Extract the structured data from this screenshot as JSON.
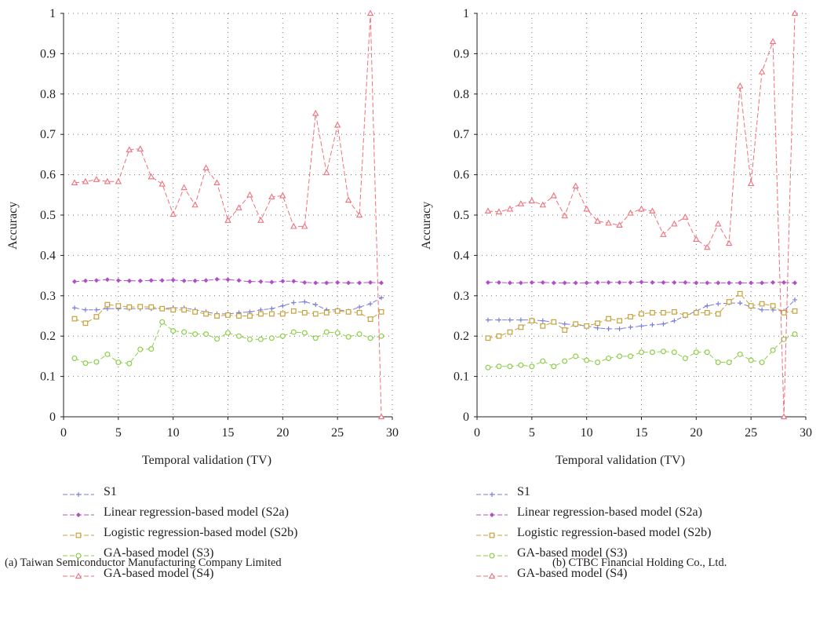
{
  "legend": [
    {
      "label": "S1",
      "color": "#7b7fd6",
      "marker": "plus"
    },
    {
      "label": "Linear regression-based model (S2a)",
      "color": "#b04fc8",
      "marker": "diamond"
    },
    {
      "label": "Logistic regression-based model (S2b)",
      "color": "#c6a13c",
      "marker": "square"
    },
    {
      "label": "GA-based model (S3)",
      "color": "#8ccf4a",
      "marker": "circle"
    },
    {
      "label": "GA-based model (S4)",
      "color": "#f0707c",
      "marker": "triangle"
    }
  ],
  "chart_data": [
    {
      "type": "line",
      "caption": "(a)  Taiwan Semiconductor Manufacturing Company Limited",
      "xlabel": "Temporal validation (TV)",
      "ylabel": "Accuracy",
      "xlim": [
        0,
        30
      ],
      "ylim": [
        0,
        1
      ],
      "xticks": [
        "0",
        "5",
        "10",
        "15",
        "20",
        "25",
        "30"
      ],
      "yticks": [
        "0",
        "0.1",
        "0.2",
        "0.3",
        "0.4",
        "0.5",
        "0.6",
        "0.7",
        "0.8",
        "0.9",
        "1"
      ],
      "grid": true,
      "x": [
        1,
        2,
        3,
        4,
        5,
        6,
        7,
        8,
        9,
        10,
        11,
        12,
        13,
        14,
        15,
        16,
        17,
        18,
        19,
        20,
        21,
        22,
        23,
        24,
        25,
        26,
        27,
        28,
        29
      ],
      "series": [
        {
          "name": "S1",
          "values": [
            0.27,
            0.265,
            0.265,
            0.268,
            0.268,
            0.268,
            0.268,
            0.268,
            0.268,
            0.27,
            0.27,
            0.265,
            0.26,
            0.255,
            0.255,
            0.258,
            0.26,
            0.265,
            0.268,
            0.275,
            0.283,
            0.285,
            0.278,
            0.265,
            0.265,
            0.262,
            0.272,
            0.28,
            0.295
          ]
        },
        {
          "name": "Linear regression-based model (S2a)",
          "values": [
            0.335,
            0.337,
            0.338,
            0.34,
            0.338,
            0.337,
            0.337,
            0.338,
            0.338,
            0.339,
            0.337,
            0.337,
            0.338,
            0.341,
            0.34,
            0.338,
            0.335,
            0.335,
            0.334,
            0.336,
            0.336,
            0.333,
            0.332,
            0.332,
            0.333,
            0.332,
            0.332,
            0.333,
            0.332
          ]
        },
        {
          "name": "Logistic regression-based model (S2b)",
          "values": [
            0.243,
            0.232,
            0.248,
            0.278,
            0.275,
            0.272,
            0.273,
            0.272,
            0.268,
            0.265,
            0.265,
            0.26,
            0.255,
            0.25,
            0.252,
            0.25,
            0.25,
            0.255,
            0.255,
            0.255,
            0.262,
            0.258,
            0.255,
            0.258,
            0.262,
            0.26,
            0.258,
            0.242,
            0.26
          ]
        },
        {
          "name": "GA-based model (S3)",
          "values": [
            0.145,
            0.133,
            0.136,
            0.155,
            0.135,
            0.132,
            0.167,
            0.168,
            0.235,
            0.213,
            0.21,
            0.205,
            0.205,
            0.193,
            0.208,
            0.2,
            0.192,
            0.192,
            0.195,
            0.2,
            0.21,
            0.208,
            0.195,
            0.21,
            0.208,
            0.198,
            0.205,
            0.195,
            0.2
          ]
        },
        {
          "name": "GA-based model (S4)",
          "values": [
            0.58,
            0.583,
            0.588,
            0.583,
            0.583,
            0.662,
            0.664,
            0.595,
            0.577,
            0.502,
            0.568,
            0.525,
            0.617,
            0.58,
            0.487,
            0.518,
            0.55,
            0.487,
            0.545,
            0.548,
            0.472,
            0.472,
            0.752,
            0.605,
            0.723,
            0.537,
            0.5,
            1.0,
            0.0
          ]
        }
      ]
    },
    {
      "type": "line",
      "caption": "(b)  CTBC Financial Holding Co., Ltd.",
      "xlabel": "Temporal validation (TV)",
      "ylabel": "Accuracy",
      "xlim": [
        0,
        30
      ],
      "ylim": [
        0,
        1
      ],
      "xticks": [
        "0",
        "5",
        "10",
        "15",
        "20",
        "25",
        "30"
      ],
      "yticks": [
        "0",
        "0.1",
        "0.2",
        "0.3",
        "0.4",
        "0.5",
        "0.6",
        "0.7",
        "0.8",
        "0.9",
        "1"
      ],
      "grid": true,
      "x": [
        1,
        2,
        3,
        4,
        5,
        6,
        7,
        8,
        9,
        10,
        11,
        12,
        13,
        14,
        15,
        16,
        17,
        18,
        19,
        20,
        21,
        22,
        23,
        24,
        25,
        26,
        27,
        28,
        29
      ],
      "series": [
        {
          "name": "S1",
          "values": [
            0.24,
            0.24,
            0.24,
            0.24,
            0.24,
            0.238,
            0.235,
            0.23,
            0.228,
            0.225,
            0.22,
            0.218,
            0.218,
            0.222,
            0.225,
            0.228,
            0.23,
            0.238,
            0.25,
            0.262,
            0.275,
            0.28,
            0.282,
            0.282,
            0.272,
            0.265,
            0.265,
            0.262,
            0.29
          ]
        },
        {
          "name": "Linear regression-based model (S2a)",
          "values": [
            0.333,
            0.333,
            0.332,
            0.332,
            0.333,
            0.333,
            0.332,
            0.332,
            0.332,
            0.332,
            0.333,
            0.333,
            0.333,
            0.333,
            0.334,
            0.333,
            0.333,
            0.333,
            0.333,
            0.332,
            0.332,
            0.332,
            0.332,
            0.332,
            0.332,
            0.332,
            0.333,
            0.333,
            0.332
          ]
        },
        {
          "name": "Logistic regression-based model (S2b)",
          "values": [
            0.195,
            0.2,
            0.21,
            0.222,
            0.238,
            0.225,
            0.235,
            0.215,
            0.23,
            0.225,
            0.232,
            0.243,
            0.238,
            0.248,
            0.255,
            0.258,
            0.258,
            0.26,
            0.252,
            0.258,
            0.258,
            0.255,
            0.285,
            0.305,
            0.275,
            0.28,
            0.275,
            0.258,
            0.262
          ]
        },
        {
          "name": "GA-based model (S3)",
          "values": [
            0.122,
            0.125,
            0.125,
            0.128,
            0.125,
            0.138,
            0.125,
            0.138,
            0.15,
            0.14,
            0.135,
            0.145,
            0.15,
            0.15,
            0.16,
            0.16,
            0.162,
            0.16,
            0.145,
            0.16,
            0.16,
            0.135,
            0.135,
            0.155,
            0.14,
            0.135,
            0.165,
            0.192,
            0.205
          ]
        },
        {
          "name": "GA-based model (S4)",
          "values": [
            0.51,
            0.508,
            0.515,
            0.528,
            0.535,
            0.525,
            0.548,
            0.498,
            0.572,
            0.515,
            0.485,
            0.48,
            0.475,
            0.505,
            0.515,
            0.51,
            0.452,
            0.478,
            0.495,
            0.44,
            0.42,
            0.478,
            0.43,
            0.82,
            0.578,
            0.855,
            0.93,
            0.0,
            1.0
          ]
        }
      ]
    }
  ]
}
